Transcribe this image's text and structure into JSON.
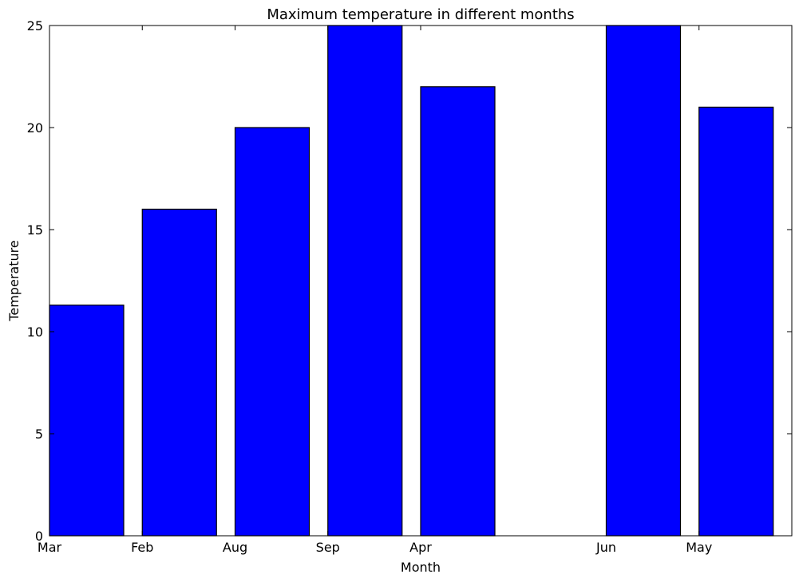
{
  "chart_data": {
    "type": "bar",
    "title": "Maximum temperature in different months",
    "xlabel": "Month",
    "ylabel": "Temperature",
    "x_ticks": [
      {
        "label": "Mar",
        "x": 0
      },
      {
        "label": "Feb",
        "x": 1
      },
      {
        "label": "Aug",
        "x": 2
      },
      {
        "label": "Sep",
        "x": 3
      },
      {
        "label": "Apr",
        "x": 4
      },
      {
        "label": "Jun",
        "x": 6
      },
      {
        "label": "May",
        "x": 7
      }
    ],
    "bars": [
      {
        "x": 0,
        "value": 11.3
      },
      {
        "x": 1,
        "value": 16
      },
      {
        "x": 2,
        "value": 20
      },
      {
        "x": 3,
        "value": 25
      },
      {
        "x": 4,
        "value": 22
      },
      {
        "x": 6,
        "value": 25
      },
      {
        "x": 7,
        "value": 21
      }
    ],
    "bar_width": 0.8,
    "xlim": [
      0,
      8
    ],
    "ylim": [
      0,
      25
    ],
    "y_ticks": [
      0,
      5,
      10,
      15,
      20,
      25
    ],
    "grid": false,
    "colors": {
      "bar_fill": "#0000ff",
      "bar_edge": "#000000"
    }
  }
}
